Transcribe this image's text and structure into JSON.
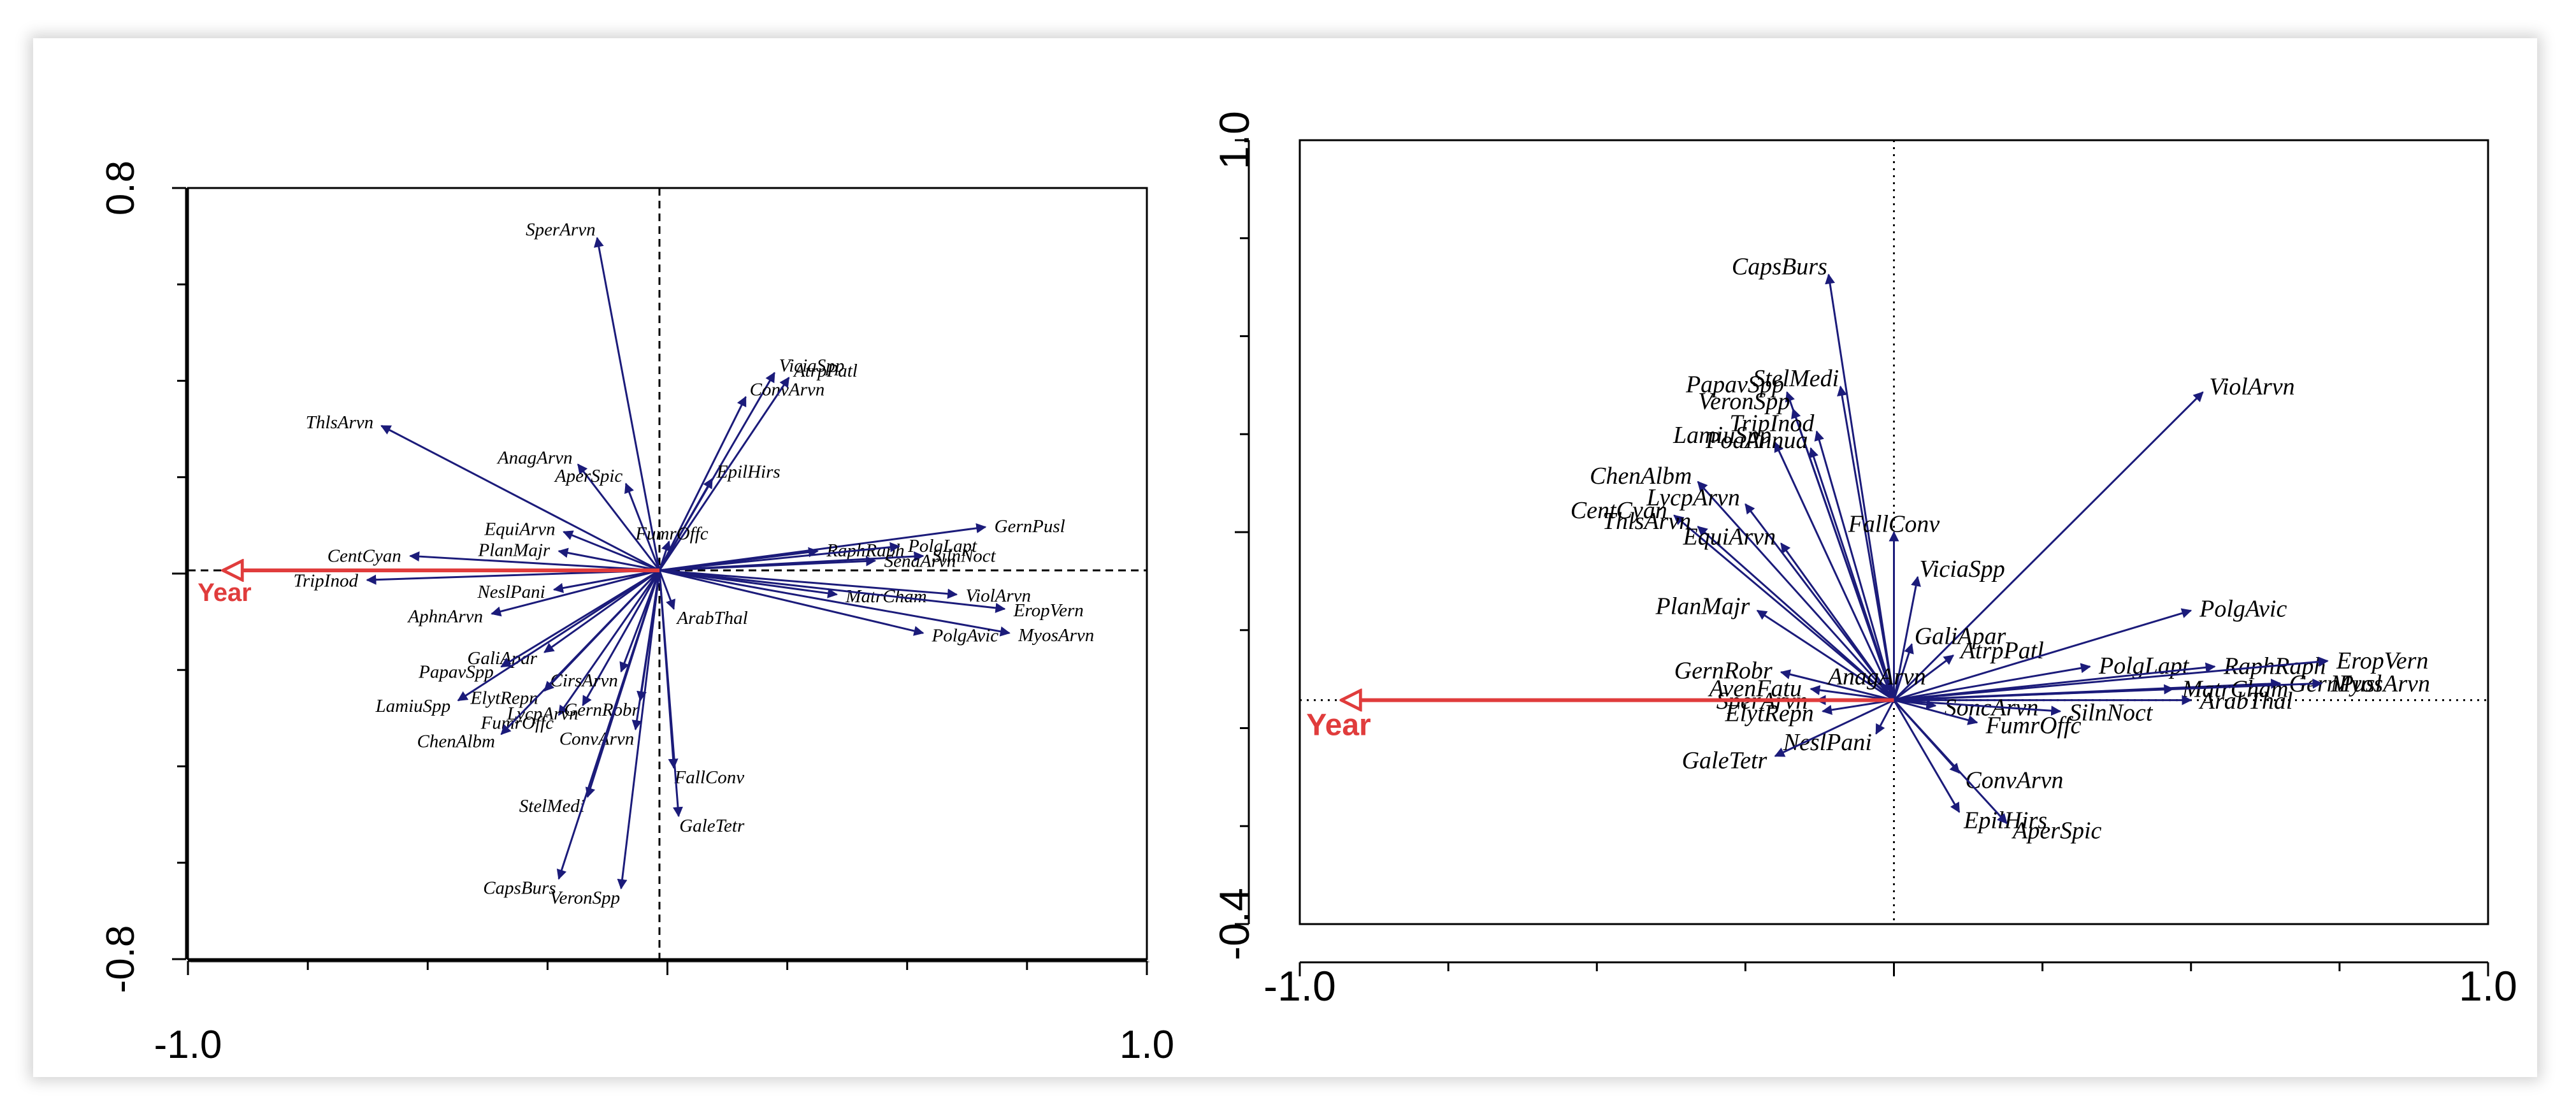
{
  "colors": {
    "arrow": "#1b1b7a",
    "year": "#e03c3c",
    "axis": "#000000"
  },
  "chart_data": [
    {
      "type": "biplot",
      "title": "",
      "xlim": [
        -1.0,
        1.0
      ],
      "ylim": [
        -0.8,
        0.8
      ],
      "x_tick_labels": [
        "-1.0",
        "1.0"
      ],
      "y_tick_labels": [
        "0.8",
        "-0.8"
      ],
      "variable": {
        "name": "Year",
        "x": -0.91,
        "y": 0.0
      },
      "species": [
        {
          "name": "SperArvn",
          "x": -0.13,
          "y": 0.69
        },
        {
          "name": "ViciaSpp",
          "x": 0.24,
          "y": 0.41
        },
        {
          "name": "ConvArvn",
          "x": 0.18,
          "y": 0.36
        },
        {
          "name": "AtrpPatl",
          "x": 0.27,
          "y": 0.4
        },
        {
          "name": "ThlsArvn",
          "x": -0.58,
          "y": 0.3
        },
        {
          "name": "AnagArvn",
          "x": -0.17,
          "y": 0.22
        },
        {
          "name": "AperSpic",
          "x": -0.07,
          "y": 0.18
        },
        {
          "name": "EpilHirs",
          "x": 0.11,
          "y": 0.19
        },
        {
          "name": "GernPusl",
          "x": 0.68,
          "y": 0.09
        },
        {
          "name": "CentCyan",
          "x": -0.52,
          "y": 0.03
        },
        {
          "name": "EquiArvn",
          "x": -0.2,
          "y": 0.08
        },
        {
          "name": "PlanMajr",
          "x": -0.21,
          "y": 0.04
        },
        {
          "name": "FumrOffc",
          "x": 0.02,
          "y": 0.06
        },
        {
          "name": "RaphRaph",
          "x": 0.33,
          "y": 0.04
        },
        {
          "name": "PolgLapt",
          "x": 0.5,
          "y": 0.05
        },
        {
          "name": "SilnNoct",
          "x": 0.55,
          "y": 0.03
        },
        {
          "name": "SenaArvn",
          "x": 0.45,
          "y": 0.02
        },
        {
          "name": "MatrCham",
          "x": 0.37,
          "y": -0.05
        },
        {
          "name": "ViolArvn",
          "x": 0.62,
          "y": -0.05
        },
        {
          "name": "EropVern",
          "x": 0.72,
          "y": -0.08
        },
        {
          "name": "MyosArvn",
          "x": 0.73,
          "y": -0.13
        },
        {
          "name": "PolgAvic",
          "x": 0.55,
          "y": -0.13
        },
        {
          "name": "Year",
          "x": -0.91,
          "y": 0.0
        },
        {
          "name": "TripInod",
          "x": -0.61,
          "y": -0.02
        },
        {
          "name": "NeslPani",
          "x": -0.22,
          "y": -0.04
        },
        {
          "name": "ArabThal",
          "x": 0.03,
          "y": -0.08
        },
        {
          "name": "AphnArvn",
          "x": -0.35,
          "y": -0.09
        },
        {
          "name": "GaliApar",
          "x": -0.24,
          "y": -0.17
        },
        {
          "name": "PapavSpp",
          "x": -0.33,
          "y": -0.2
        },
        {
          "name": "ElytRepn",
          "x": -0.24,
          "y": -0.25
        },
        {
          "name": "FumrOffc",
          "x": -0.21,
          "y": -0.3
        },
        {
          "name": "LycpArvn",
          "x": -0.16,
          "y": -0.28
        },
        {
          "name": "CirsArvn",
          "x": -0.08,
          "y": -0.21
        },
        {
          "name": "GernRobr",
          "x": -0.04,
          "y": -0.27
        },
        {
          "name": "ConvArvn",
          "x": -0.05,
          "y": -0.33
        },
        {
          "name": "LamiuSpp",
          "x": -0.42,
          "y": -0.27
        },
        {
          "name": "ChenAlbm",
          "x": -0.33,
          "y": -0.34
        },
        {
          "name": "FallConv",
          "x": 0.03,
          "y": -0.41
        },
        {
          "name": "GaleTetr",
          "x": 0.04,
          "y": -0.51
        },
        {
          "name": "StelMedi",
          "x": -0.15,
          "y": -0.47
        },
        {
          "name": "CapsBurs",
          "x": -0.21,
          "y": -0.64
        },
        {
          "name": "VeronSpp",
          "x": -0.08,
          "y": -0.66
        }
      ]
    },
    {
      "type": "biplot",
      "title": "",
      "xlim": [
        -1.0,
        1.0
      ],
      "ylim": [
        -0.4,
        1.0
      ],
      "x_tick_labels": [
        "-1.0",
        "1.0"
      ],
      "y_tick_labels": [
        "1.0",
        "-0.4"
      ],
      "variable": {
        "name": "Year",
        "x": -0.93,
        "y": 0.0
      },
      "species": [
        {
          "name": "CapsBurs",
          "x": -0.11,
          "y": 0.76
        },
        {
          "name": "StelMedi",
          "x": -0.09,
          "y": 0.56
        },
        {
          "name": "PapavSpp",
          "x": -0.18,
          "y": 0.55
        },
        {
          "name": "VeronSpp",
          "x": -0.17,
          "y": 0.52
        },
        {
          "name": "ViolArvn",
          "x": 0.52,
          "y": 0.55
        },
        {
          "name": "TripInod",
          "x": -0.13,
          "y": 0.48
        },
        {
          "name": "LamiuSpp",
          "x": -0.2,
          "y": 0.46
        },
        {
          "name": "PoaAnnua",
          "x": -0.14,
          "y": 0.45
        },
        {
          "name": "ChenAlbm",
          "x": -0.33,
          "y": 0.39
        },
        {
          "name": "CentCyan",
          "x": -0.37,
          "y": 0.33
        },
        {
          "name": "LycpArvn",
          "x": -0.25,
          "y": 0.35
        },
        {
          "name": "ThlsArvn",
          "x": -0.33,
          "y": 0.31
        },
        {
          "name": "EquiArvn",
          "x": -0.19,
          "y": 0.28
        },
        {
          "name": "FallConv",
          "x": 0.0,
          "y": 0.3
        },
        {
          "name": "ViciaSpp",
          "x": 0.04,
          "y": 0.22
        },
        {
          "name": "PlanMajr",
          "x": -0.23,
          "y": 0.16
        },
        {
          "name": "GaliApar",
          "x": 0.03,
          "y": 0.1
        },
        {
          "name": "AtrpPatl",
          "x": 0.1,
          "y": 0.08
        },
        {
          "name": "PolgAvic",
          "x": 0.5,
          "y": 0.16
        },
        {
          "name": "PolgLapt",
          "x": 0.33,
          "y": 0.06
        },
        {
          "name": "RaphRaph",
          "x": 0.54,
          "y": 0.06
        },
        {
          "name": "EropVern",
          "x": 0.73,
          "y": 0.07
        },
        {
          "name": "GernPusl",
          "x": 0.65,
          "y": 0.03
        },
        {
          "name": "MatrCham",
          "x": 0.47,
          "y": 0.02
        },
        {
          "name": "MyosArvn",
          "x": 0.72,
          "y": 0.03
        },
        {
          "name": "ArabThal",
          "x": 0.5,
          "y": 0.0
        },
        {
          "name": "GernRobr",
          "x": -0.19,
          "y": 0.05
        },
        {
          "name": "AvenFatu",
          "x": -0.14,
          "y": 0.02
        },
        {
          "name": "AnagArvn",
          "x": -0.02,
          "y": 0.03
        },
        {
          "name": "SperArvn",
          "x": -0.13,
          "y": 0.0
        },
        {
          "name": "ElytRepn",
          "x": -0.12,
          "y": -0.02
        },
        {
          "name": "SoncArvn",
          "x": 0.07,
          "y": -0.01
        },
        {
          "name": "NeslPani",
          "x": -0.03,
          "y": -0.06
        },
        {
          "name": "FumrOffc",
          "x": 0.14,
          "y": -0.04
        },
        {
          "name": "SilnNoct",
          "x": 0.28,
          "y": -0.02
        },
        {
          "name": "GaleTetr",
          "x": -0.2,
          "y": -0.1
        },
        {
          "name": "ConvArvn",
          "x": 0.11,
          "y": -0.13
        },
        {
          "name": "EpilHirs",
          "x": 0.11,
          "y": -0.2
        },
        {
          "name": "AperSpic",
          "x": 0.19,
          "y": -0.22
        }
      ]
    }
  ]
}
